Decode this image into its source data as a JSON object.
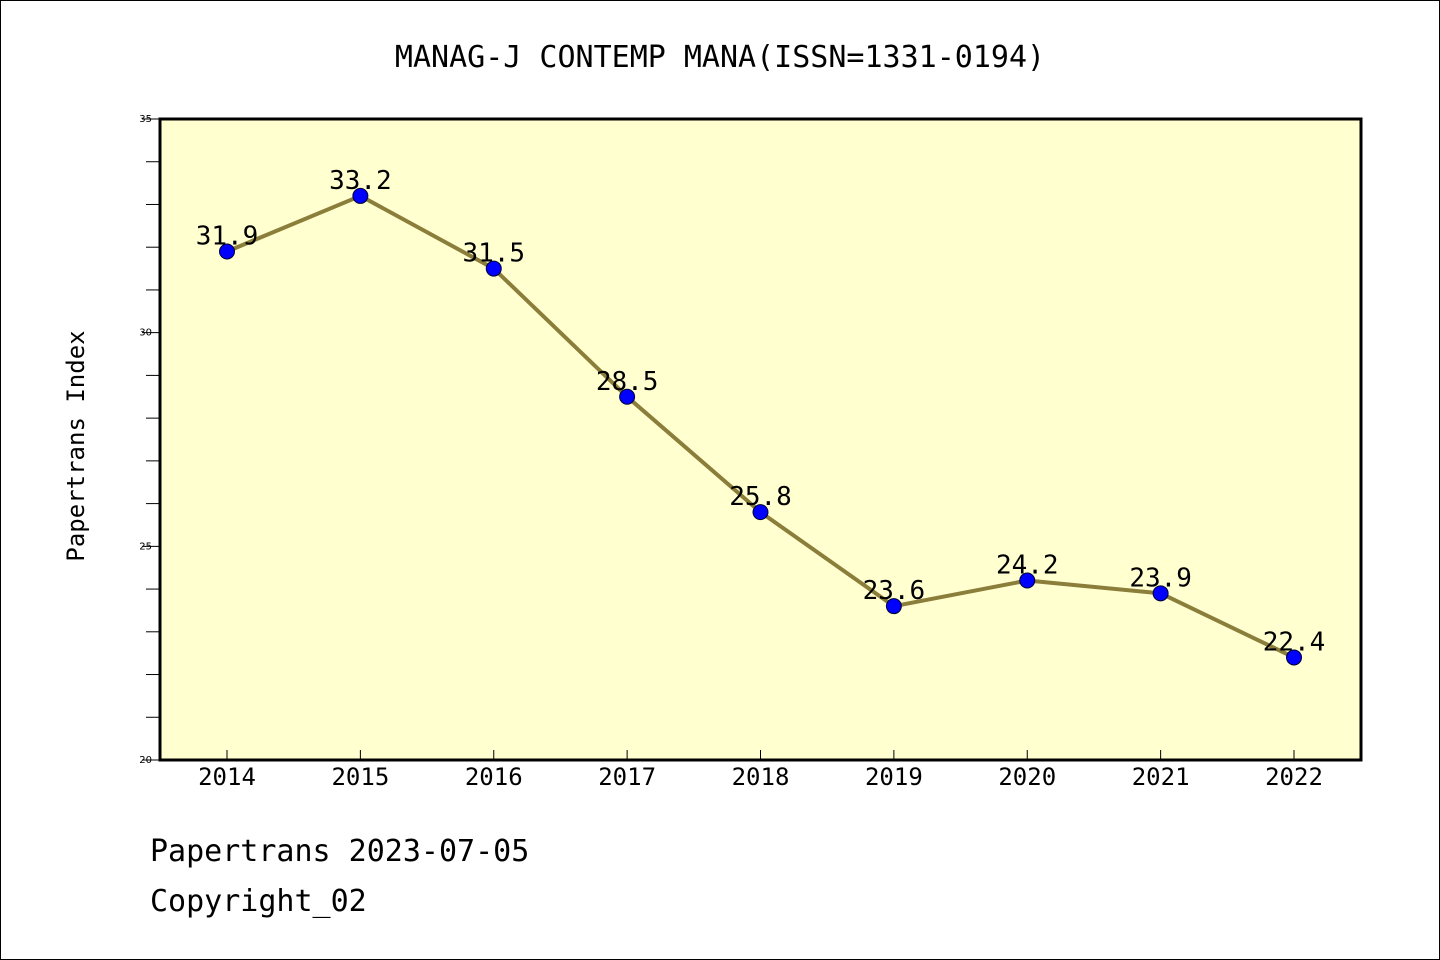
{
  "chart_data": {
    "type": "line",
    "title": "MANAG-J CONTEMP MANA(ISSN=1331-0194)",
    "ylabel": "Papertrans Index",
    "xlabel": "",
    "categories": [
      "2014",
      "2015",
      "2016",
      "2017",
      "2018",
      "2019",
      "2020",
      "2021",
      "2022"
    ],
    "series": [
      {
        "values": [
          31.9,
          33.2,
          31.5,
          28.5,
          25.8,
          23.6,
          24.2,
          23.9,
          22.4
        ],
        "labels": [
          "31.9",
          "33.2",
          "31.5",
          "28.5",
          "25.8",
          "23.6",
          "24.2",
          "23.9",
          "22.4"
        ]
      }
    ],
    "ylim": [
      20,
      35
    ],
    "yticks": [
      "20",
      "25",
      "30",
      "35"
    ],
    "grid": false,
    "colors": {
      "plot_background": "#ffffd0",
      "line": "#8b7d3a",
      "marker": "#0000ff",
      "axis": "#000000"
    }
  },
  "footer": {
    "line1": "Papertrans 2023-07-05",
    "line2": "Copyright_02"
  }
}
